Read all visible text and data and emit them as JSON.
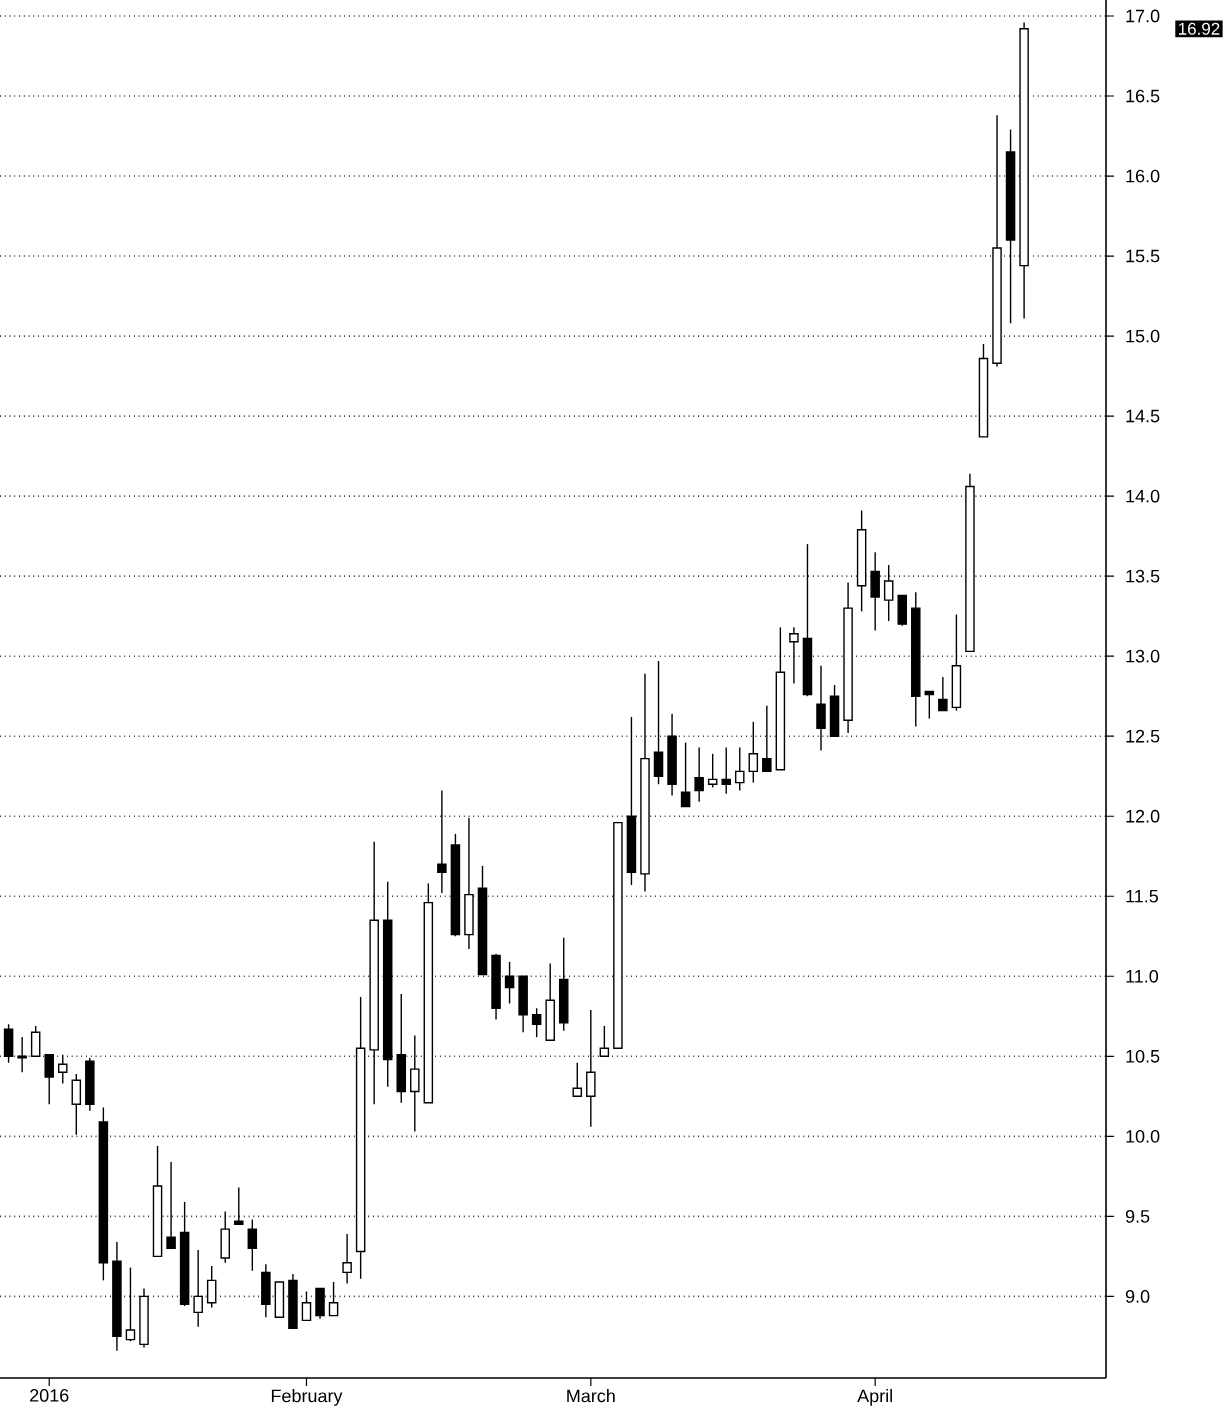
{
  "chart_data": {
    "type": "candlestick",
    "categories": [
      null,
      null,
      null,
      "2016",
      null,
      null,
      null,
      null,
      null,
      null,
      null,
      null,
      null,
      null,
      null,
      null,
      null,
      null,
      null,
      null,
      null,
      null,
      "February",
      null,
      null,
      null,
      null,
      null,
      null,
      null,
      null,
      null,
      null,
      null,
      null,
      null,
      null,
      null,
      null,
      null,
      null,
      null,
      null,
      "March",
      null,
      null,
      null,
      null,
      null,
      null,
      null,
      null,
      null,
      null,
      null,
      null,
      null,
      null,
      null,
      null,
      null,
      null,
      null,
      null,
      "April",
      null,
      null,
      null,
      null,
      null,
      null,
      null,
      null,
      null,
      null,
      null
    ],
    "ohlc": [
      [
        10.67,
        10.7,
        10.46,
        10.5
      ],
      [
        10.5,
        10.62,
        10.4,
        10.49
      ],
      [
        10.5,
        10.69,
        10.5,
        10.65
      ],
      [
        10.51,
        10.51,
        10.2,
        10.37
      ],
      [
        10.4,
        10.51,
        10.33,
        10.45
      ],
      [
        10.2,
        10.39,
        10.01,
        10.35
      ],
      [
        10.47,
        10.49,
        10.16,
        10.2
      ],
      [
        10.09,
        10.18,
        9.1,
        9.21
      ],
      [
        9.22,
        9.34,
        8.66,
        8.75
      ],
      [
        8.73,
        9.18,
        8.72,
        8.79
      ],
      [
        8.7,
        9.05,
        8.68,
        9.0
      ],
      [
        9.25,
        9.94,
        9.25,
        9.69
      ],
      [
        9.37,
        9.84,
        9.3,
        9.3
      ],
      [
        9.4,
        9.59,
        8.94,
        8.95
      ],
      [
        8.9,
        9.29,
        8.81,
        9.0
      ],
      [
        8.96,
        9.19,
        8.93,
        9.1
      ],
      [
        9.24,
        9.53,
        9.21,
        9.42
      ],
      [
        9.47,
        9.68,
        9.45,
        9.45
      ],
      [
        9.42,
        9.48,
        9.16,
        9.3
      ],
      [
        9.15,
        9.2,
        8.87,
        8.95
      ],
      [
        8.87,
        9.09,
        8.87,
        9.09
      ],
      [
        9.1,
        9.14,
        8.8,
        8.8
      ],
      [
        8.85,
        9.03,
        8.85,
        8.96
      ],
      [
        9.05,
        9.05,
        8.86,
        8.88
      ],
      [
        8.88,
        9.09,
        8.88,
        8.96
      ],
      [
        9.15,
        9.39,
        9.08,
        9.21
      ],
      [
        9.28,
        10.87,
        9.11,
        10.55
      ],
      [
        10.54,
        11.84,
        10.2,
        11.35
      ],
      [
        11.35,
        11.59,
        10.31,
        10.48
      ],
      [
        10.51,
        10.89,
        10.21,
        10.28
      ],
      [
        10.28,
        10.63,
        10.03,
        10.42
      ],
      [
        10.21,
        11.58,
        10.21,
        11.46
      ],
      [
        11.7,
        12.16,
        11.52,
        11.65
      ],
      [
        11.82,
        11.89,
        11.25,
        11.26
      ],
      [
        11.26,
        11.99,
        11.17,
        11.51
      ],
      [
        11.55,
        11.69,
        11.01,
        11.01
      ],
      [
        11.13,
        11.14,
        10.73,
        10.8
      ],
      [
        11.0,
        11.09,
        10.83,
        10.93
      ],
      [
        11.0,
        11.0,
        10.65,
        10.76
      ],
      [
        10.76,
        10.8,
        10.62,
        10.7
      ],
      [
        10.6,
        11.08,
        10.6,
        10.85
      ],
      [
        10.98,
        11.24,
        10.66,
        10.71
      ],
      [
        10.25,
        10.46,
        10.25,
        10.3
      ],
      [
        10.25,
        10.79,
        10.06,
        10.4
      ],
      [
        10.5,
        10.69,
        10.5,
        10.55
      ],
      [
        10.55,
        11.96,
        10.55,
        11.96
      ],
      [
        12.0,
        12.62,
        11.57,
        11.65
      ],
      [
        11.64,
        12.89,
        11.53,
        12.36
      ],
      [
        12.4,
        12.97,
        12.2,
        12.25
      ],
      [
        12.5,
        12.64,
        12.13,
        12.2
      ],
      [
        12.15,
        12.46,
        12.06,
        12.06
      ],
      [
        12.24,
        12.43,
        12.09,
        12.16
      ],
      [
        12.2,
        12.39,
        12.18,
        12.23
      ],
      [
        12.23,
        12.43,
        12.14,
        12.2
      ],
      [
        12.21,
        12.43,
        12.16,
        12.28
      ],
      [
        12.28,
        12.59,
        12.21,
        12.39
      ],
      [
        12.36,
        12.69,
        12.28,
        12.28
      ],
      [
        12.29,
        13.18,
        12.29,
        12.9
      ],
      [
        13.09,
        13.18,
        12.83,
        13.14
      ],
      [
        13.11,
        13.7,
        12.75,
        12.76
      ],
      [
        12.7,
        12.94,
        12.41,
        12.55
      ],
      [
        12.75,
        12.82,
        12.5,
        12.5
      ],
      [
        12.6,
        13.46,
        12.52,
        13.3
      ],
      [
        13.44,
        13.91,
        13.28,
        13.79
      ],
      [
        13.53,
        13.65,
        13.16,
        13.37
      ],
      [
        13.35,
        13.57,
        13.22,
        13.47
      ],
      [
        13.38,
        13.38,
        13.19,
        13.2
      ],
      [
        13.3,
        13.4,
        12.56,
        12.75
      ],
      [
        12.78,
        12.78,
        12.61,
        12.76
      ],
      [
        12.73,
        12.87,
        12.66,
        12.66
      ],
      [
        12.68,
        13.26,
        12.66,
        12.94
      ],
      [
        13.03,
        14.14,
        13.03,
        14.06
      ],
      [
        14.37,
        14.95,
        14.37,
        14.86
      ],
      [
        14.83,
        16.38,
        14.81,
        15.55
      ],
      [
        16.15,
        16.29,
        15.08,
        15.6
      ],
      [
        15.44,
        16.96,
        15.11,
        16.92
      ]
    ],
    "ylim": [
      8.49,
      17.1
    ],
    "yticks": [
      {
        "value": 9,
        "label": "9.0"
      },
      9.5,
      {
        "value": 10,
        "label": "10.0"
      },
      10.5,
      {
        "value": 11,
        "label": "11.0"
      },
      11.5,
      {
        "value": 12,
        "label": "12.0"
      },
      12.5,
      {
        "value": 13,
        "label": "13.0"
      },
      13.5,
      {
        "value": 14,
        "label": "14.0"
      },
      14.5,
      {
        "value": 15,
        "label": "15.0"
      },
      15.5,
      {
        "value": 16,
        "label": "16.0"
      },
      16.5,
      {
        "value": 17,
        "label": "17.0"
      }
    ],
    "grid": "y",
    "annotations": [
      "16.92"
    ]
  }
}
